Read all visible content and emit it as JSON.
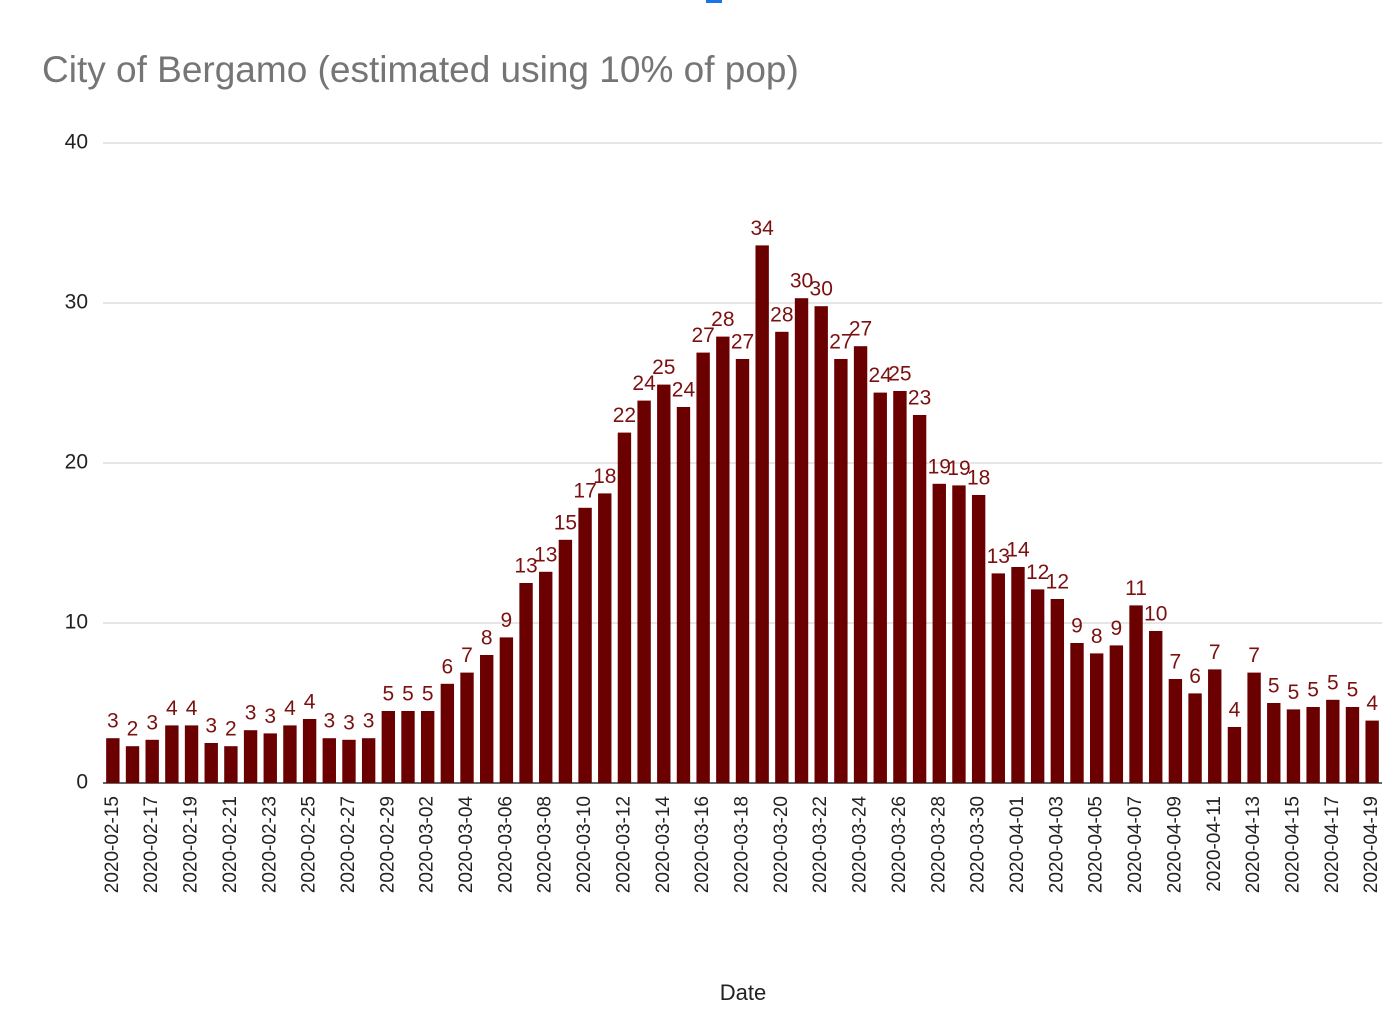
{
  "chart_data": {
    "type": "bar",
    "title": "City of Bergamo (estimated using 10% of pop)",
    "x_label": "Date",
    "categories": [
      "2020-02-15",
      null,
      "2020-02-17",
      null,
      "2020-02-19",
      null,
      "2020-02-21",
      null,
      "2020-02-23",
      null,
      "2020-02-25",
      null,
      "2020-02-27",
      null,
      "2020-02-29",
      null,
      "2020-03-02",
      null,
      "2020-03-04",
      null,
      "2020-03-06",
      null,
      "2020-03-08",
      null,
      "2020-03-10",
      null,
      "2020-03-12",
      null,
      "2020-03-14",
      null,
      "2020-03-16",
      null,
      "2020-03-18",
      null,
      "2020-03-20",
      null,
      "2020-03-22",
      null,
      "2020-03-24",
      null,
      "2020-03-26",
      null,
      "2020-03-28",
      null,
      "2020-03-30",
      null,
      "2020-04-01",
      null,
      "2020-04-03",
      null,
      "2020-04-05",
      null,
      "2020-04-07",
      null,
      "2020-04-09",
      null,
      "2020-04-11",
      null,
      "2020-04-13",
      null,
      "2020-04-15",
      null,
      "2020-04-17",
      null,
      "2020-04-19"
    ],
    "values": [
      2.8,
      2.3,
      2.7,
      3.6,
      3.6,
      2.5,
      2.3,
      3.3,
      3.1,
      3.6,
      4.0,
      2.8,
      2.7,
      2.8,
      4.5,
      4.5,
      4.5,
      6.2,
      6.9,
      8.0,
      9.1,
      12.5,
      13.2,
      15.2,
      17.2,
      18.1,
      21.9,
      23.9,
      24.9,
      23.5,
      26.9,
      27.9,
      26.5,
      33.6,
      28.2,
      30.3,
      29.8,
      26.5,
      27.3,
      24.4,
      24.5,
      23.0,
      18.7,
      18.6,
      18.0,
      13.1,
      13.5,
      12.1,
      11.5,
      8.75,
      8.1,
      8.6,
      11.1,
      9.5,
      6.5,
      5.6,
      7.1,
      3.5,
      6.9,
      5.0,
      4.6,
      4.75,
      5.2,
      4.75,
      3.9
    ],
    "value_labels": [
      "3",
      "2",
      "3",
      "4",
      "4",
      "3",
      "2",
      "3",
      "3",
      "4",
      "4",
      "3",
      "3",
      "3",
      "5",
      "5",
      "5",
      "6",
      "7",
      "8",
      "9",
      "13",
      "13",
      "15",
      "17",
      "18",
      "22",
      "24",
      "25",
      "24",
      "27",
      "28",
      "27",
      "34",
      "28",
      "30",
      "30",
      "27",
      "27",
      "24",
      "25",
      "23",
      "19",
      "19",
      "18",
      "13",
      "14",
      "12",
      "12",
      "9",
      "8",
      "9",
      "11",
      "10",
      "7",
      "6",
      "7",
      "4",
      "7",
      "5",
      "5",
      "5",
      "5",
      "5",
      "4"
    ],
    "color": "#6b0000",
    "label_color": "#7b1010",
    "ylim": [
      0,
      40
    ],
    "yticks": [
      0,
      10,
      20,
      30,
      40
    ],
    "grid": true
  }
}
